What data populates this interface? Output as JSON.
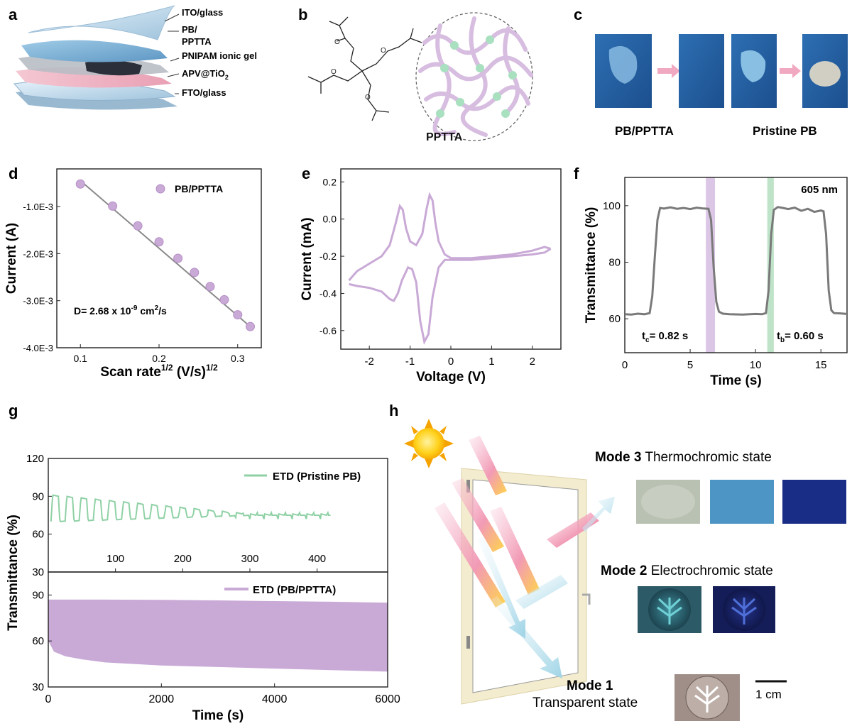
{
  "panel_letters": [
    "a",
    "b",
    "c",
    "d",
    "e",
    "f",
    "g",
    "h"
  ],
  "panel_a": {
    "layers": [
      "ITO/glass",
      "PB/",
      "PPTTA",
      "PNIPAM ionic gel",
      "APV@TiO",
      "FTO/glass"
    ],
    "apv_subscript": "2"
  },
  "panel_b": {
    "label": "PPTTA"
  },
  "panel_c": {
    "labels": [
      "PB/PPTTA",
      "Pristine PB"
    ]
  },
  "colors": {
    "purple": "#c9a9d6",
    "purple_line": "#9a9a9a",
    "green": "#8fd1a5",
    "gray": "#7a7a7a"
  },
  "chart_data": [
    {
      "id": "d",
      "type": "scatter",
      "xlabel_main": "Scan rate",
      "xlabel_sup1": "1/2",
      "xlabel_mid": " (V/s)",
      "xlabel_sup2": "1/2",
      "ylabel": "Current (A)",
      "xticks": [
        "0.1",
        "0.2",
        "0.3"
      ],
      "xtick_values": [
        0.1,
        0.2,
        0.3
      ],
      "yticks": [
        "-1.0E-3",
        "-2.0E-3",
        "-3.0E-3",
        "-4.0E-3"
      ],
      "ytick_values": [
        -0.001,
        -0.002,
        -0.003,
        -0.004
      ],
      "xlim": [
        0.07,
        0.33
      ],
      "ylim": [
        -0.004,
        -0.0002
      ],
      "legend": "PB/PPTTA",
      "annotation_main": "D= 2.68 x 10",
      "annotation_exp": "-9",
      "annotation_unit": " cm",
      "annotation_unit_exp": "2",
      "annotation_tail": "/s",
      "x": [
        0.1,
        0.141,
        0.173,
        0.2,
        0.224,
        0.245,
        0.265,
        0.283,
        0.3,
        0.316
      ],
      "y": [
        -0.00052,
        -0.00099,
        -0.00141,
        -0.00175,
        -0.0021,
        -0.0024,
        -0.0027,
        -0.00298,
        -0.0033,
        -0.00355
      ],
      "fit": {
        "x": [
          0.1,
          0.318
        ],
        "y": [
          -0.00045,
          -0.00358
        ]
      }
    },
    {
      "id": "e",
      "type": "line",
      "xlabel": "Voltage (V)",
      "ylabel": "Current (mA)",
      "xticks": [
        "-2",
        "-1",
        "0",
        "1",
        "2"
      ],
      "xtick_values": [
        -2,
        -1,
        0,
        1,
        2
      ],
      "yticks": [
        "0.2",
        "0.0",
        "-0.2",
        "-0.4",
        "-0.6"
      ],
      "ytick_values": [
        0.2,
        0.0,
        -0.2,
        -0.4,
        -0.6
      ],
      "xlim": [
        -2.7,
        2.7
      ],
      "ylim": [
        -0.7,
        0.27
      ],
      "upper": {
        "x": [
          -2.5,
          -2.3,
          -2.0,
          -1.7,
          -1.5,
          -1.35,
          -1.25,
          -1.18,
          -1.1,
          -1.0,
          -0.85,
          -0.7,
          -0.6,
          -0.52,
          -0.45,
          -0.38,
          -0.3,
          -0.15,
          0.0,
          0.5,
          1.0,
          1.5,
          2.0,
          2.3,
          2.45
        ],
        "y": [
          -0.33,
          -0.28,
          -0.24,
          -0.2,
          -0.14,
          -0.02,
          0.07,
          0.05,
          -0.05,
          -0.12,
          -0.14,
          -0.08,
          0.05,
          0.13,
          0.1,
          -0.02,
          -0.12,
          -0.19,
          -0.21,
          -0.21,
          -0.2,
          -0.19,
          -0.17,
          -0.15,
          -0.16
        ]
      },
      "lower": {
        "x": [
          2.45,
          2.3,
          2.0,
          1.5,
          1.0,
          0.5,
          0.1,
          -0.15,
          -0.3,
          -0.45,
          -0.55,
          -0.65,
          -0.75,
          -0.85,
          -0.95,
          -1.05,
          -1.2,
          -1.3,
          -1.4,
          -1.5,
          -1.7,
          -2.0,
          -2.3,
          -2.5
        ],
        "y": [
          -0.16,
          -0.18,
          -0.19,
          -0.2,
          -0.21,
          -0.22,
          -0.22,
          -0.22,
          -0.26,
          -0.42,
          -0.62,
          -0.66,
          -0.55,
          -0.34,
          -0.27,
          -0.26,
          -0.33,
          -0.4,
          -0.44,
          -0.43,
          -0.39,
          -0.37,
          -0.36,
          -0.35
        ]
      }
    },
    {
      "id": "f",
      "type": "line",
      "xlabel": "Time (s)",
      "ylabel": "Transmittance (%)",
      "xticks": [
        "0",
        "5",
        "10",
        "15"
      ],
      "xtick_values": [
        0,
        5,
        10,
        15
      ],
      "yticks": [
        "60",
        "80",
        "100"
      ],
      "ytick_values": [
        60,
        80,
        100
      ],
      "xlim": [
        0,
        17
      ],
      "ylim": [
        48,
        110
      ],
      "wavelength": "605 nm",
      "tc_main": "t",
      "tc_sub": "c",
      "tc_value": "= 0.82 s",
      "tb_main": "t",
      "tb_sub": "b",
      "tb_value": "= 0.60 s",
      "bands": [
        {
          "from": 6.2,
          "to": 6.9,
          "color": "#dcc6e6"
        },
        {
          "from": 10.9,
          "to": 11.4,
          "color": "#bfe3c9"
        }
      ],
      "x": [
        0,
        0.5,
        1.0,
        1.5,
        1.9,
        2.1,
        2.3,
        2.5,
        2.7,
        3.0,
        3.5,
        4.0,
        4.5,
        5.0,
        5.5,
        6.0,
        6.4,
        6.6,
        6.8,
        7.0,
        7.2,
        7.5,
        8.0,
        9.0,
        10.0,
        10.5,
        10.8,
        11.0,
        11.2,
        11.4,
        11.7,
        12.0,
        12.5,
        13.0,
        13.5,
        14.0,
        14.5,
        15.0,
        15.2,
        15.4,
        15.6,
        15.8,
        16.0,
        16.5,
        17.0
      ],
      "y": [
        61.6,
        61.5,
        61.8,
        61.6,
        62.0,
        68,
        82,
        95,
        99.2,
        99.0,
        99.4,
        98.9,
        99.2,
        98.8,
        99.3,
        99.0,
        98.9,
        95,
        78,
        66,
        62.5,
        61.8,
        61.6,
        61.5,
        61.7,
        61.6,
        62.0,
        70,
        90,
        98.5,
        99.5,
        99.3,
        98.8,
        99.3,
        98.2,
        98.9,
        97.8,
        98.3,
        98.0,
        90,
        70,
        63,
        62,
        61.9,
        61.7
      ]
    },
    {
      "id": "g",
      "type": "line",
      "xlabel": "Time (s)",
      "ylabel": "Transmittance (%)",
      "top": {
        "legend": "ETD (Pristine PB)",
        "xticks": [
          "100",
          "200",
          "300",
          "400"
        ],
        "xtick_values": [
          100,
          200,
          300,
          400
        ],
        "yticks": [
          "120",
          "90",
          "60",
          "30"
        ],
        "ytick_values": [
          120,
          90,
          60,
          30
        ],
        "xlim": [
          0,
          505
        ],
        "ylim": [
          30,
          120
        ],
        "cycles": 20,
        "period": 21,
        "high_start": 91,
        "high_end": 76,
        "low": 70,
        "end_time": 420,
        "tail_value": 75
      },
      "bottom": {
        "legend": "ETD (PB/PPTTA)",
        "xticks": [
          "0",
          "2000",
          "4000",
          "6000"
        ],
        "xtick_values": [
          0,
          2000,
          4000,
          6000
        ],
        "yticks": [
          "90",
          "60",
          "30"
        ],
        "ytick_values": [
          90,
          60,
          30
        ],
        "xlim": [
          0,
          6000
        ],
        "ylim": [
          30,
          105
        ],
        "upper_x": [
          0,
          500,
          1000,
          2000,
          3000,
          4000,
          5000,
          6000
        ],
        "upper_y": [
          87,
          87,
          87,
          86.8,
          86.5,
          86,
          85.6,
          85
        ],
        "lower_x": [
          0,
          100,
          300,
          600,
          1000,
          2000,
          3000,
          4000,
          5000,
          6000
        ],
        "lower_y": [
          60,
          53,
          50,
          48,
          46,
          44,
          43,
          42,
          41,
          40
        ]
      }
    }
  ],
  "panel_h": {
    "mode3_bold": "Mode 3",
    "mode3_text": " Thermochromic state",
    "mode2_bold": "Mode 2",
    "mode2_text": " Electrochromic state",
    "mode1_bold": "Mode 1",
    "mode1_text": "Transparent state",
    "scale": "1 cm"
  }
}
